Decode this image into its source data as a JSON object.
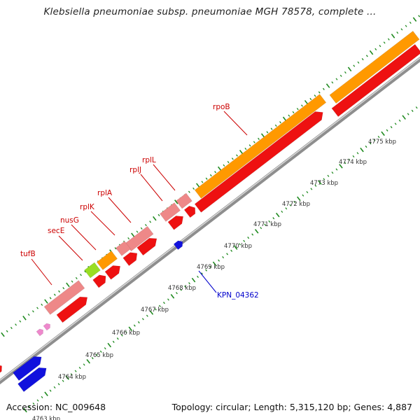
{
  "title": "Klebsiella pneumoniae subsp. pneumoniae MGH 78578, complete ...",
  "footer": {
    "accession": "Accession: NC_009648",
    "summary": "Topology: circular; Length: 5,315,120 bp; Genes: 4,887"
  },
  "colors": {
    "backbone": "#8e8e8e",
    "backbone_highlight": "#d9d9d9",
    "tick": "#1f8a1f",
    "tick_label": "#333333",
    "gene_label": "#cc0000",
    "locus_label": "#0000cc",
    "orange_track": "#ff9900",
    "pink_gene": "#ee8888",
    "red_gene": "#ee1111",
    "green_gene": "#99dd22",
    "blue_gene": "#1111dd",
    "small_pink_arrow": "#ee88cc"
  },
  "kbp_ticks": [
    "4763 kbp",
    "4764 kbp",
    "4765 kbp",
    "4766 kbp",
    "4767 kbp",
    "4768 kbp",
    "4769 kbp",
    "4770 kbp",
    "4771 kbp",
    "4772 kbp",
    "4773 kbp",
    "4774 kbp",
    "4775 kbp"
  ],
  "gene_labels": [
    "rpoB",
    "rplL",
    "rplJ",
    "rplA",
    "rplK",
    "nusG",
    "secE",
    "tufB"
  ],
  "locus_label": "KPN_04362"
}
